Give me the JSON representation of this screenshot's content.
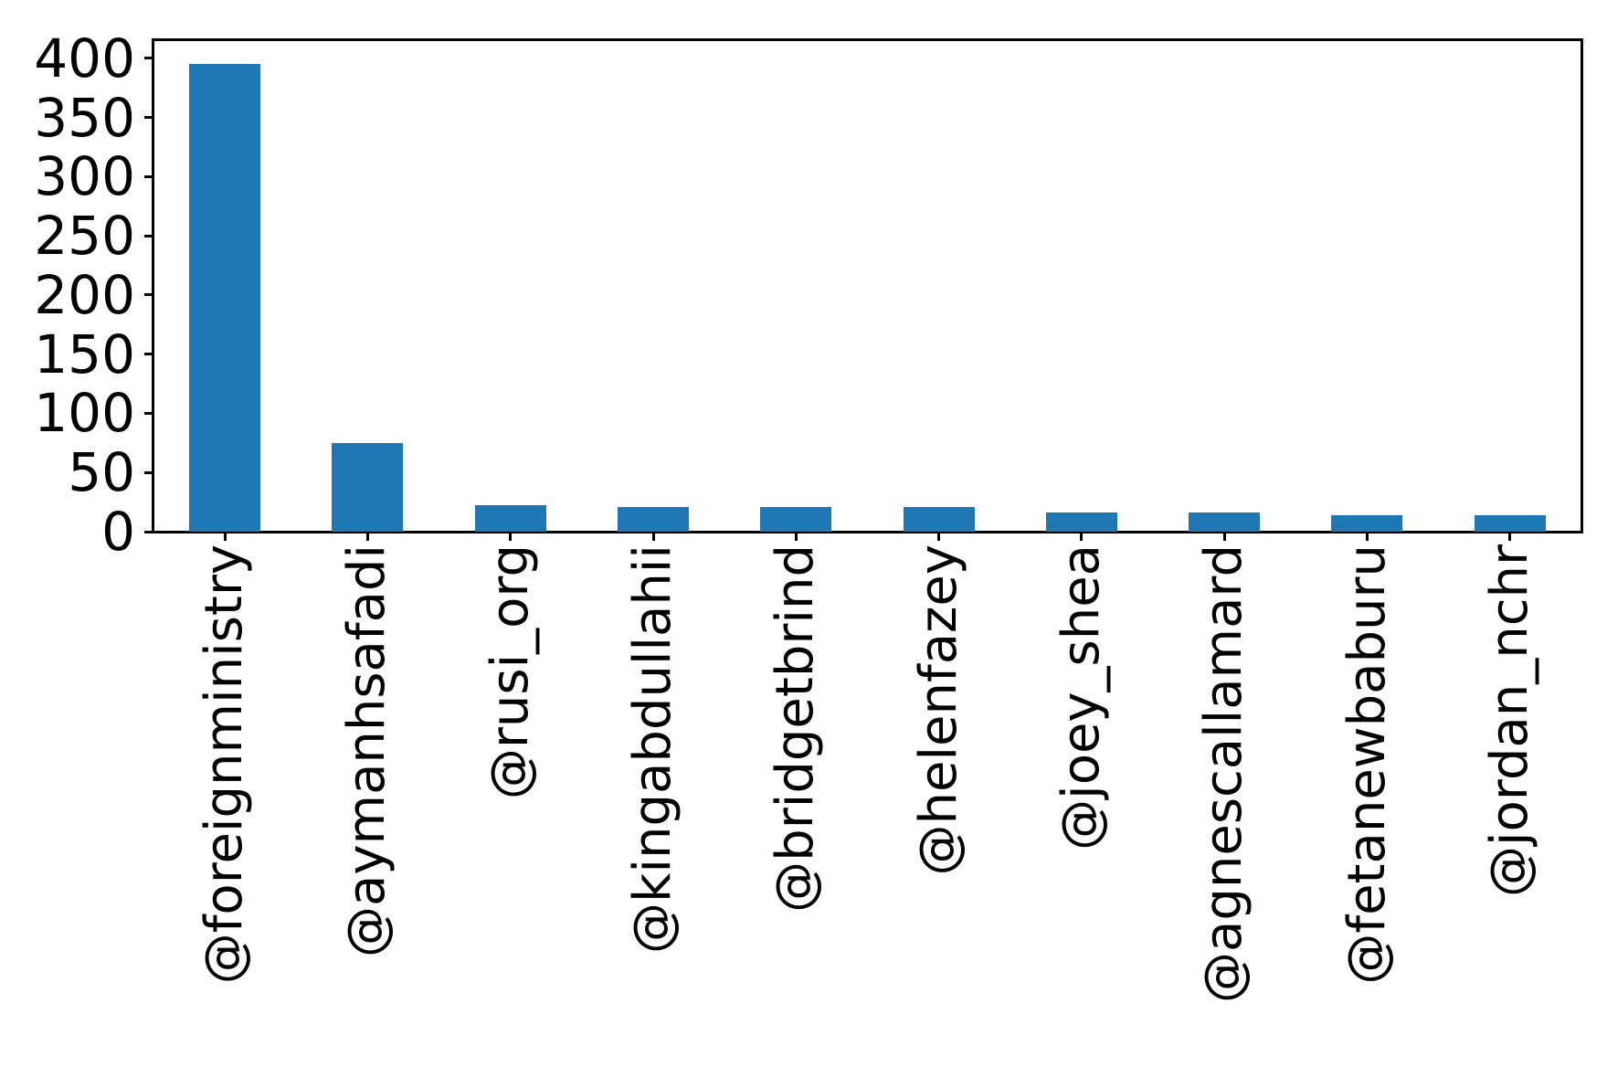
{
  "chart_data": {
    "type": "bar",
    "title": "",
    "xlabel": "",
    "ylabel": "",
    "categories": [
      "@foreignministry",
      "@aymanhsafadi",
      "@rusi_org",
      "@kingabdullahii",
      "@bridgetbrind",
      "@helenfazey",
      "@joey_shea",
      "@agnescallamard",
      "@fetanewbaburu",
      "@jordan_nchr"
    ],
    "values": [
      395,
      75,
      22,
      21,
      21,
      21,
      16,
      16,
      14,
      14
    ],
    "yticks": [
      0,
      50,
      100,
      150,
      200,
      250,
      300,
      350,
      400
    ],
    "ylim": [
      0,
      416
    ],
    "bar_color": "#1f77b4",
    "axis_color": "#000000",
    "background_color": "#ffffff",
    "grid": false,
    "legend_position": "none",
    "x_tick_rotation_degrees": 90
  }
}
